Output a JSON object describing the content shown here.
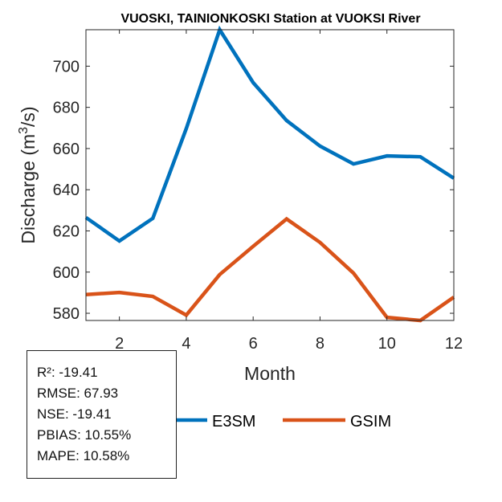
{
  "chart_data": {
    "type": "line",
    "title": "VUOSKI, TAINIONKOSKI  Station at  VUOKSI  River",
    "xlabel": "Month",
    "ylabel": "Discharge (m³/s)",
    "ylabel_parts": {
      "main": "Discharge (m",
      "sup": "3",
      "end": "/s)"
    },
    "x": [
      1,
      2,
      3,
      4,
      5,
      6,
      7,
      8,
      9,
      10,
      11,
      12
    ],
    "xlim": [
      1,
      12
    ],
    "ylim": [
      576.5,
      717.7
    ],
    "xticks": [
      2,
      4,
      6,
      8,
      10,
      12
    ],
    "yticks": [
      580,
      600,
      620,
      640,
      660,
      680,
      700
    ],
    "series": [
      {
        "name": "E3SM",
        "color": "#0072BD",
        "values": [
          626.5,
          615.1,
          626.1,
          669.7,
          717.7,
          692.0,
          673.6,
          661.2,
          652.5,
          656.4,
          656.0,
          645.6
        ]
      },
      {
        "name": "GSIM",
        "color": "#D95319",
        "values": [
          589.1,
          590.1,
          588.2,
          579.1,
          598.8,
          612.5,
          625.8,
          614.4,
          599.5,
          578.0,
          576.5,
          587.8
        ]
      }
    ],
    "legend_placement": "bottom-outside",
    "grid": false
  },
  "stats": [
    "R²: -19.41",
    "RMSE: 67.93",
    "NSE: -19.41",
    "PBIAS: 10.55%",
    "MAPE: 10.58%"
  ]
}
